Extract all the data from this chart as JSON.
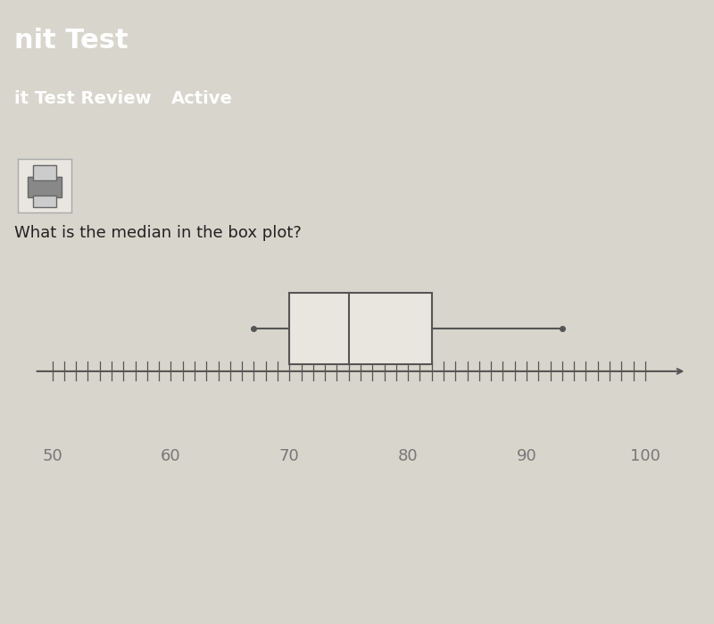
{
  "title": "What is the median in the box plot?",
  "title_fontsize": 13,
  "content_bg": "#d8d5cc",
  "header_bg": "#2a3a4a",
  "box_background": "#e8e6de",
  "whisker_min": 67,
  "q1": 70,
  "median": 75,
  "q3": 82,
  "whisker_max": 93,
  "xmin": 48,
  "xmax": 104,
  "xticks": [
    50,
    60,
    70,
    80,
    90,
    100
  ],
  "tick_color": "#777777",
  "axis_color": "#555555",
  "box_color": "#555555",
  "header1": "nit Test",
  "header2": "it Test Review",
  "header2_active": "Active",
  "header1_fontsize": 22,
  "header2_fontsize": 14,
  "title_color": "#222222",
  "header_text_color": "#ffffff",
  "icon_bg": "#e8e6de",
  "icon_border": "#aaaaaa"
}
